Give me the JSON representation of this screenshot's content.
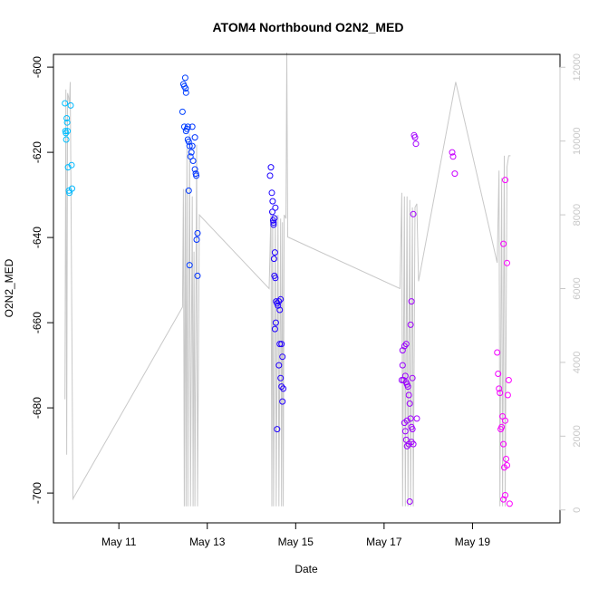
{
  "chart_data": {
    "type": "scatter",
    "title": "ATOM4 Northbound O2N2_MED",
    "xlabel": "Date",
    "ylabel": "O2N2_MED",
    "x_ticks": [
      "May 11",
      "May 13",
      "May 15",
      "May 17",
      "May 19"
    ],
    "x_tick_values": [
      11,
      13,
      15,
      17,
      19
    ],
    "x_range_days": [
      9.52,
      20.98
    ],
    "ylim": [
      -707,
      -597
    ],
    "y_ticks": [
      -700,
      -680,
      -660,
      -640,
      -620,
      -600
    ],
    "y2lim": [
      -350,
      12350
    ],
    "y2_ticks": [
      0,
      2000,
      4000,
      6000,
      8000,
      10000,
      12000
    ],
    "series_line_color": "#c8c8c8",
    "color_gradient": [
      "#00bfff",
      "#0000ff",
      "#ff00ff"
    ],
    "points": [
      [
        9.78,
        -608.5
      ],
      [
        9.79,
        -615.0
      ],
      [
        9.8,
        -615.5
      ],
      [
        9.81,
        -617.0
      ],
      [
        9.82,
        -612.0
      ],
      [
        9.83,
        -613.0
      ],
      [
        9.84,
        -615.0
      ],
      [
        9.85,
        -623.5
      ],
      [
        9.87,
        -629.0
      ],
      [
        9.88,
        -629.5
      ],
      [
        9.91,
        -609.0
      ],
      [
        9.93,
        -623.0
      ],
      [
        9.94,
        -628.5
      ],
      [
        12.44,
        -610.5
      ],
      [
        12.46,
        -604.0
      ],
      [
        12.48,
        -604.5
      ],
      [
        12.5,
        -602.5
      ],
      [
        12.51,
        -605.0
      ],
      [
        12.52,
        -606.0
      ],
      [
        12.48,
        -614.0
      ],
      [
        12.52,
        -615.0
      ],
      [
        12.54,
        -614.5
      ],
      [
        12.56,
        -614.0
      ],
      [
        12.56,
        -617.0
      ],
      [
        12.58,
        -617.5
      ],
      [
        12.6,
        -618.5
      ],
      [
        12.58,
        -629.0
      ],
      [
        12.62,
        -621.0
      ],
      [
        12.64,
        -620.0
      ],
      [
        12.66,
        -618.5
      ],
      [
        12.66,
        -614.0
      ],
      [
        12.68,
        -622.0
      ],
      [
        12.6,
        -646.5
      ],
      [
        12.72,
        -616.5
      ],
      [
        12.72,
        -624.0
      ],
      [
        12.74,
        -625.0
      ],
      [
        12.75,
        -625.5
      ],
      [
        12.78,
        -639.0
      ],
      [
        12.76,
        -640.5
      ],
      [
        12.78,
        -649.0
      ],
      [
        14.44,
        -623.5
      ],
      [
        14.42,
        -625.5
      ],
      [
        14.46,
        -629.5
      ],
      [
        14.48,
        -631.5
      ],
      [
        14.47,
        -634.0
      ],
      [
        14.49,
        -636.0
      ],
      [
        14.5,
        -636.5
      ],
      [
        14.52,
        -635.5
      ],
      [
        14.5,
        -637.0
      ],
      [
        14.54,
        -633.0
      ],
      [
        14.51,
        -645.0
      ],
      [
        14.53,
        -643.5
      ],
      [
        14.52,
        -649.0
      ],
      [
        14.54,
        -649.5
      ],
      [
        14.56,
        -655.0
      ],
      [
        14.58,
        -655.5
      ],
      [
        14.6,
        -656.0
      ],
      [
        14.62,
        -655.0
      ],
      [
        14.64,
        -657.0
      ],
      [
        14.55,
        -660.0
      ],
      [
        14.53,
        -661.5
      ],
      [
        14.66,
        -654.5
      ],
      [
        14.68,
        -665.0
      ],
      [
        14.7,
        -668.0
      ],
      [
        14.64,
        -665.0
      ],
      [
        14.62,
        -670.0
      ],
      [
        14.66,
        -673.0
      ],
      [
        14.68,
        -675.0
      ],
      [
        14.72,
        -675.5
      ],
      [
        14.7,
        -678.5
      ],
      [
        14.58,
        -685.0
      ],
      [
        17.42,
        -666.5
      ],
      [
        17.46,
        -665.5
      ],
      [
        17.5,
        -665.0
      ],
      [
        17.42,
        -670.0
      ],
      [
        17.44,
        -673.5
      ],
      [
        17.48,
        -672.5
      ],
      [
        17.4,
        -673.5
      ],
      [
        17.5,
        -674.0
      ],
      [
        17.52,
        -674.5
      ],
      [
        17.54,
        -675.0
      ],
      [
        17.56,
        -677.0
      ],
      [
        17.58,
        -679.0
      ],
      [
        17.46,
        -683.5
      ],
      [
        17.52,
        -683.0
      ],
      [
        17.6,
        -682.5
      ],
      [
        17.62,
        -684.5
      ],
      [
        17.64,
        -685.0
      ],
      [
        17.48,
        -685.5
      ],
      [
        17.5,
        -687.5
      ],
      [
        17.56,
        -688.5
      ],
      [
        17.62,
        -688.0
      ],
      [
        17.66,
        -688.5
      ],
      [
        17.52,
        -689.0
      ],
      [
        17.58,
        -702.0
      ],
      [
        17.6,
        -660.5
      ],
      [
        17.62,
        -655.0
      ],
      [
        17.64,
        -673.0
      ],
      [
        17.66,
        -634.5
      ],
      [
        17.68,
        -616.0
      ],
      [
        17.7,
        -616.5
      ],
      [
        17.72,
        -618.0
      ],
      [
        17.74,
        -682.5
      ],
      [
        18.54,
        -620.0
      ],
      [
        18.56,
        -621.0
      ],
      [
        18.6,
        -625.0
      ],
      [
        19.56,
        -667.0
      ],
      [
        19.58,
        -672.0
      ],
      [
        19.6,
        -675.5
      ],
      [
        19.62,
        -676.5
      ],
      [
        19.64,
        -685.0
      ],
      [
        19.66,
        -684.5
      ],
      [
        19.68,
        -682.0
      ],
      [
        19.7,
        -688.5
      ],
      [
        19.72,
        -694.0
      ],
      [
        19.74,
        -683.0
      ],
      [
        19.76,
        -692.0
      ],
      [
        19.7,
        -701.5
      ],
      [
        19.74,
        -700.5
      ],
      [
        19.78,
        -693.5
      ],
      [
        19.8,
        -677.0
      ],
      [
        19.82,
        -673.5
      ],
      [
        19.84,
        -702.5
      ],
      [
        19.7,
        -641.5
      ],
      [
        19.74,
        -626.5
      ],
      [
        19.78,
        -646.0
      ]
    ],
    "line_series": [
      [
        9.78,
        3000
      ],
      [
        9.8,
        11400
      ],
      [
        9.82,
        1500
      ],
      [
        9.84,
        11300
      ],
      [
        9.86,
        11200
      ],
      [
        9.88,
        11000
      ],
      [
        9.9,
        11600
      ],
      [
        9.92,
        8000
      ],
      [
        9.96,
        300
      ],
      [
        12.44,
        5500
      ],
      [
        12.46,
        8700
      ],
      [
        12.48,
        100
      ],
      [
        12.5,
        8700
      ],
      [
        12.52,
        100
      ],
      [
        12.54,
        9800
      ],
      [
        12.56,
        100
      ],
      [
        12.6,
        10200
      ],
      [
        12.62,
        100
      ],
      [
        12.66,
        8500
      ],
      [
        12.68,
        100
      ],
      [
        12.7,
        7000
      ],
      [
        12.72,
        100
      ],
      [
        12.76,
        9900
      ],
      [
        12.78,
        100
      ],
      [
        12.82,
        8000
      ],
      [
        14.4,
        6000
      ],
      [
        14.44,
        8100
      ],
      [
        14.46,
        100
      ],
      [
        14.48,
        8000
      ],
      [
        14.5,
        100
      ],
      [
        14.54,
        8000
      ],
      [
        14.56,
        100
      ],
      [
        14.6,
        8000
      ],
      [
        14.62,
        100
      ],
      [
        14.66,
        7900
      ],
      [
        14.68,
        100
      ],
      [
        14.7,
        7800
      ],
      [
        14.72,
        100
      ],
      [
        14.74,
        8000
      ],
      [
        14.78,
        7900
      ],
      [
        14.8,
        12400
      ],
      [
        14.82,
        7400
      ],
      [
        17.36,
        6000
      ],
      [
        17.4,
        8600
      ],
      [
        17.42,
        100
      ],
      [
        17.46,
        8500
      ],
      [
        17.48,
        100
      ],
      [
        17.52,
        8500
      ],
      [
        17.54,
        100
      ],
      [
        17.58,
        8400
      ],
      [
        17.6,
        100
      ],
      [
        17.64,
        8200
      ],
      [
        17.66,
        100
      ],
      [
        17.7,
        8200
      ],
      [
        17.74,
        8300
      ],
      [
        17.78,
        6200
      ],
      [
        18.62,
        11600
      ],
      [
        19.56,
        6700
      ],
      [
        19.6,
        9200
      ],
      [
        19.62,
        100
      ],
      [
        19.66,
        9000
      ],
      [
        19.68,
        100
      ],
      [
        19.72,
        9600
      ],
      [
        19.74,
        100
      ],
      [
        19.78,
        9300
      ],
      [
        19.82,
        9600
      ],
      [
        19.86,
        9600
      ]
    ]
  }
}
